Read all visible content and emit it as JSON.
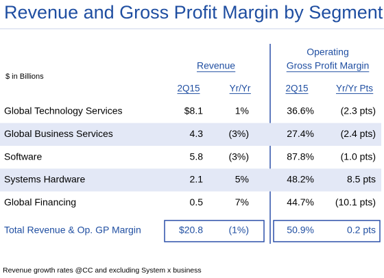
{
  "title": "Revenue and Gross Profit Margin by Segment",
  "units_note": "$ in Billions",
  "column_groups": [
    {
      "lines": [
        "Revenue"
      ]
    },
    {
      "lines": [
        "Operating",
        "Gross Profit Margin"
      ]
    }
  ],
  "columns": [
    "2Q15",
    "Yr/Yr",
    "2Q15",
    "Yr/Yr Pts"
  ],
  "rows": [
    [
      "Global Technology Services",
      "$8.1",
      "1%",
      "36.6%",
      "(2.3 pts)"
    ],
    [
      "Global Business Services",
      "4.3",
      "(3%)",
      "27.4%",
      "(2.4 pts)"
    ],
    [
      "Software",
      "5.8",
      "(3%)",
      "87.8%",
      "(1.0 pts)"
    ],
    [
      "Systems Hardware",
      "2.1",
      "5%",
      "48.2%",
      "8.5 pts"
    ],
    [
      "Global Financing",
      "0.5",
      "7%",
      "44.7%",
      "(10.1 pts)"
    ]
  ],
  "total": [
    "Total Revenue & Op. GP Margin",
    "$20.8",
    "(1%)",
    "50.9%",
    "0.2 pts"
  ],
  "footnote": "Revenue growth rates @CC and excluding System x business"
}
